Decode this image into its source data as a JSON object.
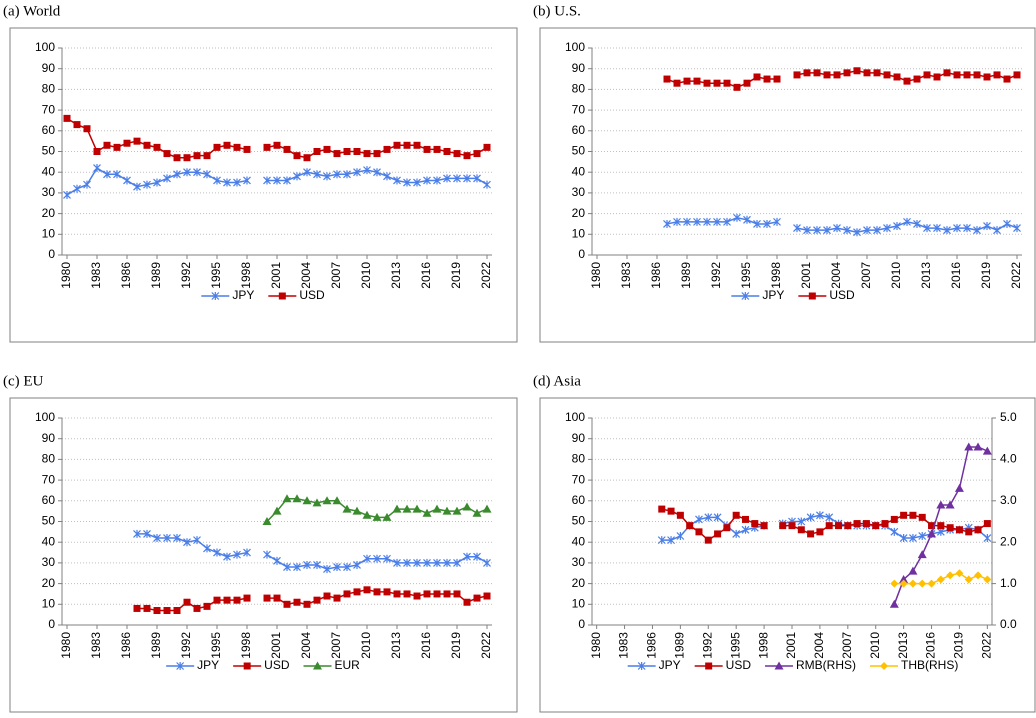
{
  "chart_data": [
    {
      "type": "line",
      "title": "(a) World",
      "grid": true,
      "legend": "bottom",
      "x": [
        1980,
        1981,
        1982,
        1983,
        1984,
        1985,
        1986,
        1987,
        1988,
        1989,
        1990,
        1991,
        1992,
        1993,
        1994,
        1995,
        1996,
        1997,
        1998,
        1999,
        2000,
        2001,
        2002,
        2003,
        2004,
        2005,
        2006,
        2007,
        2008,
        2009,
        2010,
        2011,
        2012,
        2013,
        2014,
        2015,
        2016,
        2017,
        2018,
        2019,
        2020,
        2021,
        2022
      ],
      "xlim": [
        1979.5,
        2022.5
      ],
      "xticks": [
        1980,
        1983,
        1986,
        1989,
        1992,
        1995,
        1998,
        2001,
        2004,
        2007,
        2010,
        2013,
        2016,
        2019,
        2022
      ],
      "ylim": [
        0,
        100
      ],
      "yticks": [
        0,
        10,
        20,
        30,
        40,
        50,
        60,
        70,
        80,
        90,
        100
      ],
      "series": [
        {
          "name": "JPY",
          "color": "#4a7ee8",
          "marker": "star",
          "values": [
            29,
            32,
            34,
            42,
            39,
            39,
            36,
            33,
            34,
            35,
            37,
            39,
            40,
            40,
            39,
            36,
            35,
            35,
            36,
            null,
            36,
            36,
            36,
            38,
            40,
            39,
            38,
            39,
            39,
            40,
            41,
            40,
            38,
            36,
            35,
            35,
            36,
            36,
            37,
            37,
            37,
            37,
            34
          ]
        },
        {
          "name": "USD",
          "color": "#c00000",
          "marker": "square",
          "values": [
            66,
            63,
            61,
            50,
            53,
            52,
            54,
            55,
            53,
            52,
            49,
            47,
            47,
            48,
            48,
            52,
            53,
            52,
            51,
            null,
            52,
            53,
            51,
            48,
            47,
            50,
            51,
            49,
            50,
            50,
            49,
            49,
            51,
            53,
            53,
            53,
            51,
            51,
            50,
            49,
            48,
            49,
            52
          ]
        }
      ]
    },
    {
      "type": "line",
      "title": "(b) U.S.",
      "grid": true,
      "legend": "bottom",
      "x": [
        1980,
        1981,
        1982,
        1983,
        1984,
        1985,
        1986,
        1987,
        1988,
        1989,
        1990,
        1991,
        1992,
        1993,
        1994,
        1995,
        1996,
        1997,
        1998,
        1999,
        2000,
        2001,
        2002,
        2003,
        2004,
        2005,
        2006,
        2007,
        2008,
        2009,
        2010,
        2011,
        2012,
        2013,
        2014,
        2015,
        2016,
        2017,
        2018,
        2019,
        2020,
        2021,
        2022
      ],
      "xlim": [
        1979.5,
        2022.5
      ],
      "xticks": [
        1980,
        1983,
        1986,
        1989,
        1992,
        1995,
        1998,
        2001,
        2004,
        2007,
        2010,
        2013,
        2016,
        2019,
        2022
      ],
      "ylim": [
        0,
        100
      ],
      "yticks": [
        0,
        10,
        20,
        30,
        40,
        50,
        60,
        70,
        80,
        90,
        100
      ],
      "series": [
        {
          "name": "JPY",
          "color": "#4a7ee8",
          "marker": "star",
          "values": [
            null,
            null,
            null,
            null,
            null,
            null,
            null,
            15,
            16,
            16,
            16,
            16,
            16,
            16,
            18,
            17,
            15,
            15,
            16,
            null,
            13,
            12,
            12,
            12,
            13,
            12,
            11,
            12,
            12,
            13,
            14,
            16,
            15,
            13,
            13,
            12,
            13,
            13,
            12,
            14,
            12,
            15,
            13
          ]
        },
        {
          "name": "USD",
          "color": "#c00000",
          "marker": "square",
          "values": [
            null,
            null,
            null,
            null,
            null,
            null,
            null,
            85,
            83,
            84,
            84,
            83,
            83,
            83,
            81,
            83,
            86,
            85,
            85,
            null,
            87,
            88,
            88,
            87,
            87,
            88,
            89,
            88,
            88,
            87,
            86,
            84,
            85,
            87,
            86,
            88,
            87,
            87,
            87,
            86,
            87,
            85,
            87
          ]
        }
      ]
    },
    {
      "type": "line",
      "title": "(c) EU",
      "grid": true,
      "legend": "bottom",
      "x": [
        1980,
        1981,
        1982,
        1983,
        1984,
        1985,
        1986,
        1987,
        1988,
        1989,
        1990,
        1991,
        1992,
        1993,
        1994,
        1995,
        1996,
        1997,
        1998,
        1999,
        2000,
        2001,
        2002,
        2003,
        2004,
        2005,
        2006,
        2007,
        2008,
        2009,
        2010,
        2011,
        2012,
        2013,
        2014,
        2015,
        2016,
        2017,
        2018,
        2019,
        2020,
        2021,
        2022
      ],
      "xlim": [
        1979.5,
        2022.5
      ],
      "xticks": [
        1980,
        1983,
        1986,
        1989,
        1992,
        1995,
        1998,
        2001,
        2004,
        2007,
        2010,
        2013,
        2016,
        2019,
        2022
      ],
      "ylim": [
        0,
        100
      ],
      "yticks": [
        0,
        10,
        20,
        30,
        40,
        50,
        60,
        70,
        80,
        90,
        100
      ],
      "series": [
        {
          "name": "JPY",
          "color": "#4a7ee8",
          "marker": "star",
          "values": [
            null,
            null,
            null,
            null,
            null,
            null,
            null,
            44,
            44,
            42,
            42,
            42,
            40,
            41,
            37,
            35,
            33,
            34,
            35,
            null,
            34,
            31,
            28,
            28,
            29,
            29,
            27,
            28,
            28,
            29,
            32,
            32,
            32,
            30,
            30,
            30,
            30,
            30,
            30,
            30,
            33,
            33,
            30
          ]
        },
        {
          "name": "USD",
          "color": "#c00000",
          "marker": "square",
          "values": [
            null,
            null,
            null,
            null,
            null,
            null,
            null,
            8,
            8,
            7,
            7,
            7,
            11,
            8,
            9,
            12,
            12,
            12,
            13,
            null,
            13,
            13,
            10,
            11,
            10,
            12,
            14,
            13,
            15,
            16,
            17,
            16,
            16,
            15,
            15,
            14,
            15,
            15,
            15,
            15,
            11,
            13,
            14
          ]
        },
        {
          "name": "EUR",
          "color": "#3a8a2e",
          "marker": "triangle",
          "values": [
            null,
            null,
            null,
            null,
            null,
            null,
            null,
            null,
            null,
            null,
            null,
            null,
            null,
            null,
            null,
            null,
            null,
            null,
            null,
            null,
            50,
            55,
            61,
            61,
            60,
            59,
            60,
            60,
            56,
            55,
            53,
            52,
            52,
            56,
            56,
            56,
            54,
            56,
            55,
            55,
            57,
            54,
            56
          ]
        }
      ]
    },
    {
      "type": "line",
      "title": "(d) Asia",
      "grid": true,
      "legend": "bottom",
      "x": [
        1980,
        1981,
        1982,
        1983,
        1984,
        1985,
        1986,
        1987,
        1988,
        1989,
        1990,
        1991,
        1992,
        1993,
        1994,
        1995,
        1996,
        1997,
        1998,
        1999,
        2000,
        2001,
        2002,
        2003,
        2004,
        2005,
        2006,
        2007,
        2008,
        2009,
        2010,
        2011,
        2012,
        2013,
        2014,
        2015,
        2016,
        2017,
        2018,
        2019,
        2020,
        2021,
        2022
      ],
      "xlim": [
        1979.5,
        2022.5
      ],
      "xticks": [
        1980,
        1983,
        1986,
        1989,
        1992,
        1995,
        1998,
        2001,
        2004,
        2007,
        2010,
        2013,
        2016,
        2019,
        2022
      ],
      "ylim": [
        0,
        100
      ],
      "yticks": [
        0,
        10,
        20,
        30,
        40,
        50,
        60,
        70,
        80,
        90,
        100
      ],
      "y2lim": [
        0,
        5
      ],
      "y2ticks": [
        {
          "value": 0,
          "label": "0.0"
        },
        {
          "value": 1,
          "label": "1.0"
        },
        {
          "value": 2,
          "label": "2.0"
        },
        {
          "value": 3,
          "label": "3.0"
        },
        {
          "value": 4,
          "label": "4.0"
        },
        {
          "value": 5,
          "label": "5.0"
        }
      ],
      "series": [
        {
          "name": "JPY",
          "color": "#4a7ee8",
          "marker": "star",
          "values": [
            null,
            null,
            null,
            null,
            null,
            null,
            null,
            41,
            41,
            43,
            48,
            51,
            52,
            52,
            48,
            44,
            46,
            47,
            48,
            null,
            49,
            50,
            50,
            52,
            53,
            52,
            49,
            48,
            48,
            48,
            48,
            48,
            45,
            42,
            42,
            43,
            44,
            45,
            46,
            46,
            47,
            46,
            42
          ]
        },
        {
          "name": "USD",
          "color": "#c00000",
          "marker": "square",
          "values": [
            null,
            null,
            null,
            null,
            null,
            null,
            null,
            56,
            55,
            53,
            48,
            45,
            41,
            44,
            47,
            53,
            51,
            49,
            48,
            null,
            48,
            48,
            46,
            44,
            45,
            48,
            48,
            48,
            49,
            49,
            48,
            49,
            51,
            53,
            53,
            52,
            48,
            48,
            47,
            46,
            45,
            46,
            49
          ]
        },
        {
          "name": "RMB(RHS)",
          "color": "#7030a0",
          "marker": "triangle",
          "axis": "y2",
          "values": [
            null,
            null,
            null,
            null,
            null,
            null,
            null,
            null,
            null,
            null,
            null,
            null,
            null,
            null,
            null,
            null,
            null,
            null,
            null,
            null,
            null,
            null,
            null,
            null,
            null,
            null,
            null,
            null,
            null,
            null,
            null,
            null,
            0.5,
            1.1,
            1.3,
            1.7,
            2.2,
            2.9,
            2.9,
            3.3,
            4.3,
            4.3,
            4.2
          ]
        },
        {
          "name": "THB(RHS)",
          "color": "#ffc000",
          "marker": "diamond",
          "axis": "y2",
          "values": [
            null,
            null,
            null,
            null,
            null,
            null,
            null,
            null,
            null,
            null,
            null,
            null,
            null,
            null,
            null,
            null,
            null,
            null,
            null,
            null,
            null,
            null,
            null,
            null,
            null,
            null,
            null,
            null,
            null,
            null,
            null,
            null,
            1.0,
            1.0,
            1.0,
            1.0,
            1.0,
            1.1,
            1.2,
            1.25,
            1.1,
            1.2,
            1.1
          ]
        }
      ]
    }
  ]
}
